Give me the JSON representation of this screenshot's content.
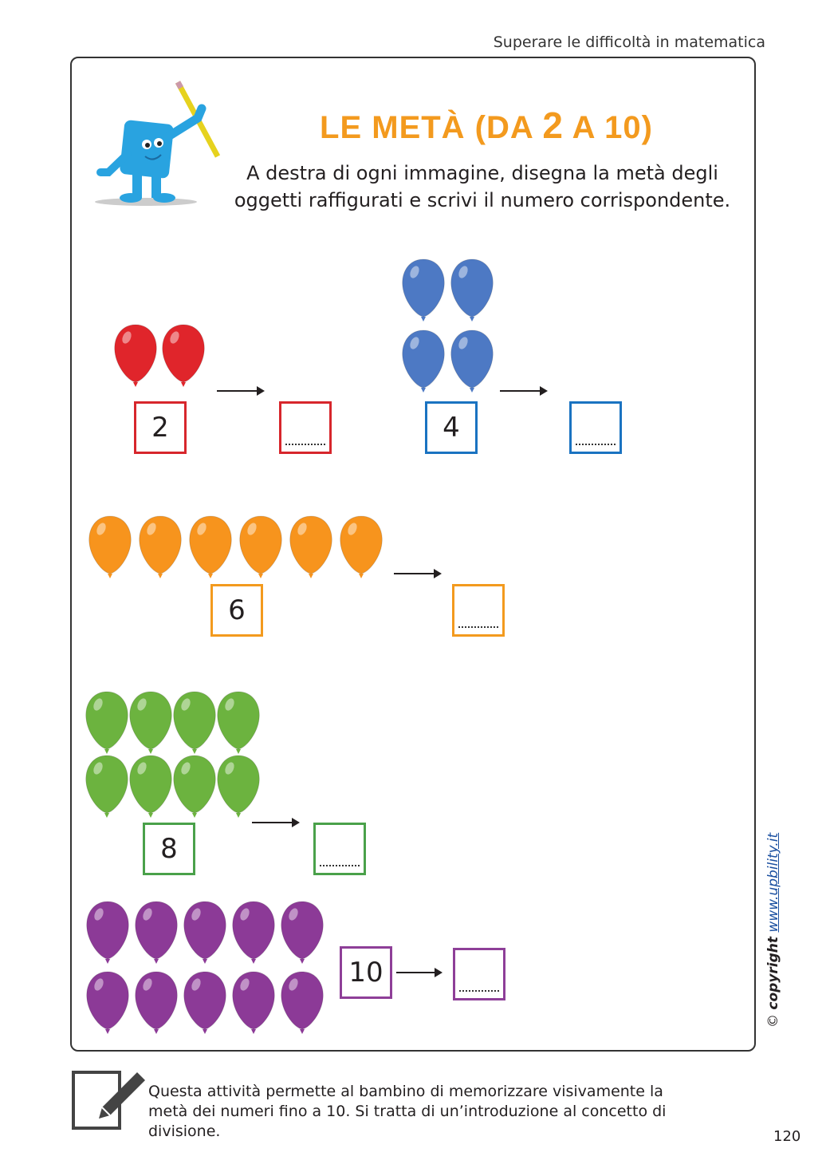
{
  "header": {
    "running_title": "Superare le difficoltà in matematica"
  },
  "title": {
    "prefix": "LE METÀ (DA ",
    "n1": "2",
    "mid": " A ",
    "n2": "10",
    "suffix": ")"
  },
  "instructions": "A destra di ogni immagine, disegna la metà degli oggetti raffigurati e scrivi il numero corrispondente.",
  "icons": {
    "mascot": "blue-book-mascot-with-pencil",
    "note": "pencil-edit-icon",
    "item": "balloon-icon"
  },
  "exercises": [
    {
      "count": 2,
      "label": "2",
      "color": "#e0252b",
      "box_color": "#d7262c",
      "answer": ""
    },
    {
      "count": 4,
      "label": "4",
      "color": "#4d79c4",
      "box_color": "#1a73c1",
      "answer": ""
    },
    {
      "count": 6,
      "label": "6",
      "color": "#f7941d",
      "box_color": "#f39a1e",
      "answer": ""
    },
    {
      "count": 8,
      "label": "8",
      "color": "#6cb33f",
      "box_color": "#4aa14a",
      "answer": ""
    },
    {
      "count": 10,
      "label": "10",
      "color": "#8c3a97",
      "box_color": "#8e3f98",
      "answer": ""
    }
  ],
  "footer": {
    "note": "Questa attività permette al bambino di memorizzare visivamente la metà dei numeri fino a 10. Si tratta di un’introduzione al concetto di divisione.",
    "copyright_symbol": "©",
    "copyright_word": "copyright",
    "copyright_link": "www.upbility.it",
    "page_number": "120"
  }
}
